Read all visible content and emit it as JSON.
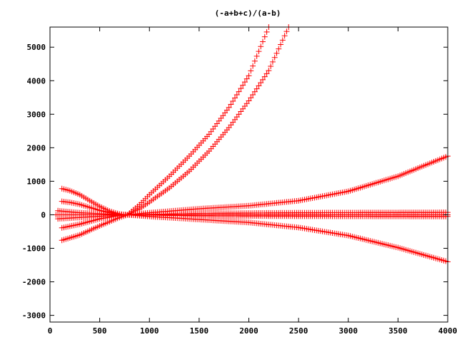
{
  "chart_data": {
    "type": "scatter",
    "title": "(-a+b+c)/(a-b)",
    "xlabel": "",
    "ylabel": "",
    "xlim": [
      0,
      4000
    ],
    "ylim": [
      -3200,
      5600
    ],
    "x_ticks": [
      0,
      500,
      1000,
      1500,
      2000,
      2500,
      3000,
      3500,
      4000
    ],
    "y_ticks": [
      -3000,
      -2000,
      -1000,
      0,
      1000,
      2000,
      3000,
      4000,
      5000
    ],
    "grid": false,
    "legend": "none",
    "marker": "plus",
    "color": "#ff0000",
    "x_step": 20,
    "series": [
      {
        "curve": "cubic-up",
        "points": [
          [
            120,
            780
          ],
          [
            200,
            720
          ],
          [
            300,
            600
          ],
          [
            400,
            420
          ],
          [
            500,
            250
          ],
          [
            600,
            110
          ],
          [
            700,
            20
          ],
          [
            780,
            0
          ],
          [
            900,
            300
          ],
          [
            1000,
            600
          ],
          [
            1200,
            1150
          ],
          [
            1400,
            1750
          ],
          [
            1600,
            2400
          ],
          [
            1800,
            3200
          ],
          [
            2000,
            4150
          ],
          [
            2200,
            5600
          ]
        ]
      },
      {
        "curve": "cubic-up-2",
        "points": [
          [
            120,
            400
          ],
          [
            200,
            370
          ],
          [
            300,
            310
          ],
          [
            400,
            220
          ],
          [
            500,
            130
          ],
          [
            600,
            60
          ],
          [
            700,
            10
          ],
          [
            780,
            0
          ],
          [
            900,
            180
          ],
          [
            1000,
            380
          ],
          [
            1200,
            800
          ],
          [
            1400,
            1300
          ],
          [
            1600,
            1900
          ],
          [
            1800,
            2600
          ],
          [
            2000,
            3400
          ],
          [
            2200,
            4300
          ],
          [
            2400,
            5600
          ]
        ]
      },
      {
        "curve": "upper-flare",
        "points": [
          [
            120,
            -390
          ],
          [
            300,
            -280
          ],
          [
            500,
            -120
          ],
          [
            700,
            -20
          ],
          [
            780,
            0
          ],
          [
            1000,
            60
          ],
          [
            1500,
            180
          ],
          [
            2000,
            270
          ],
          [
            2500,
            420
          ],
          [
            3000,
            700
          ],
          [
            3500,
            1150
          ],
          [
            4000,
            1750
          ]
        ]
      },
      {
        "curve": "lower-flare",
        "points": [
          [
            120,
            -760
          ],
          [
            300,
            -600
          ],
          [
            500,
            -330
          ],
          [
            700,
            -80
          ],
          [
            780,
            0
          ],
          [
            1000,
            -50
          ],
          [
            1500,
            -140
          ],
          [
            2000,
            -230
          ],
          [
            2500,
            -380
          ],
          [
            3000,
            -620
          ],
          [
            3500,
            -980
          ],
          [
            4000,
            -1400
          ]
        ]
      },
      {
        "curve": "upper-flat",
        "points": [
          [
            80,
            120
          ],
          [
            300,
            60
          ],
          [
            600,
            20
          ],
          [
            780,
            0
          ],
          [
            1500,
            40
          ],
          [
            2500,
            60
          ],
          [
            4000,
            70
          ]
        ]
      },
      {
        "curve": "zero",
        "points": [
          [
            60,
            0
          ],
          [
            4000,
            0
          ]
        ]
      },
      {
        "curve": "lower-flat",
        "points": [
          [
            80,
            -120
          ],
          [
            300,
            -80
          ],
          [
            600,
            -30
          ],
          [
            780,
            0
          ],
          [
            1500,
            -30
          ],
          [
            2500,
            -40
          ],
          [
            4000,
            -50
          ]
        ]
      }
    ]
  }
}
